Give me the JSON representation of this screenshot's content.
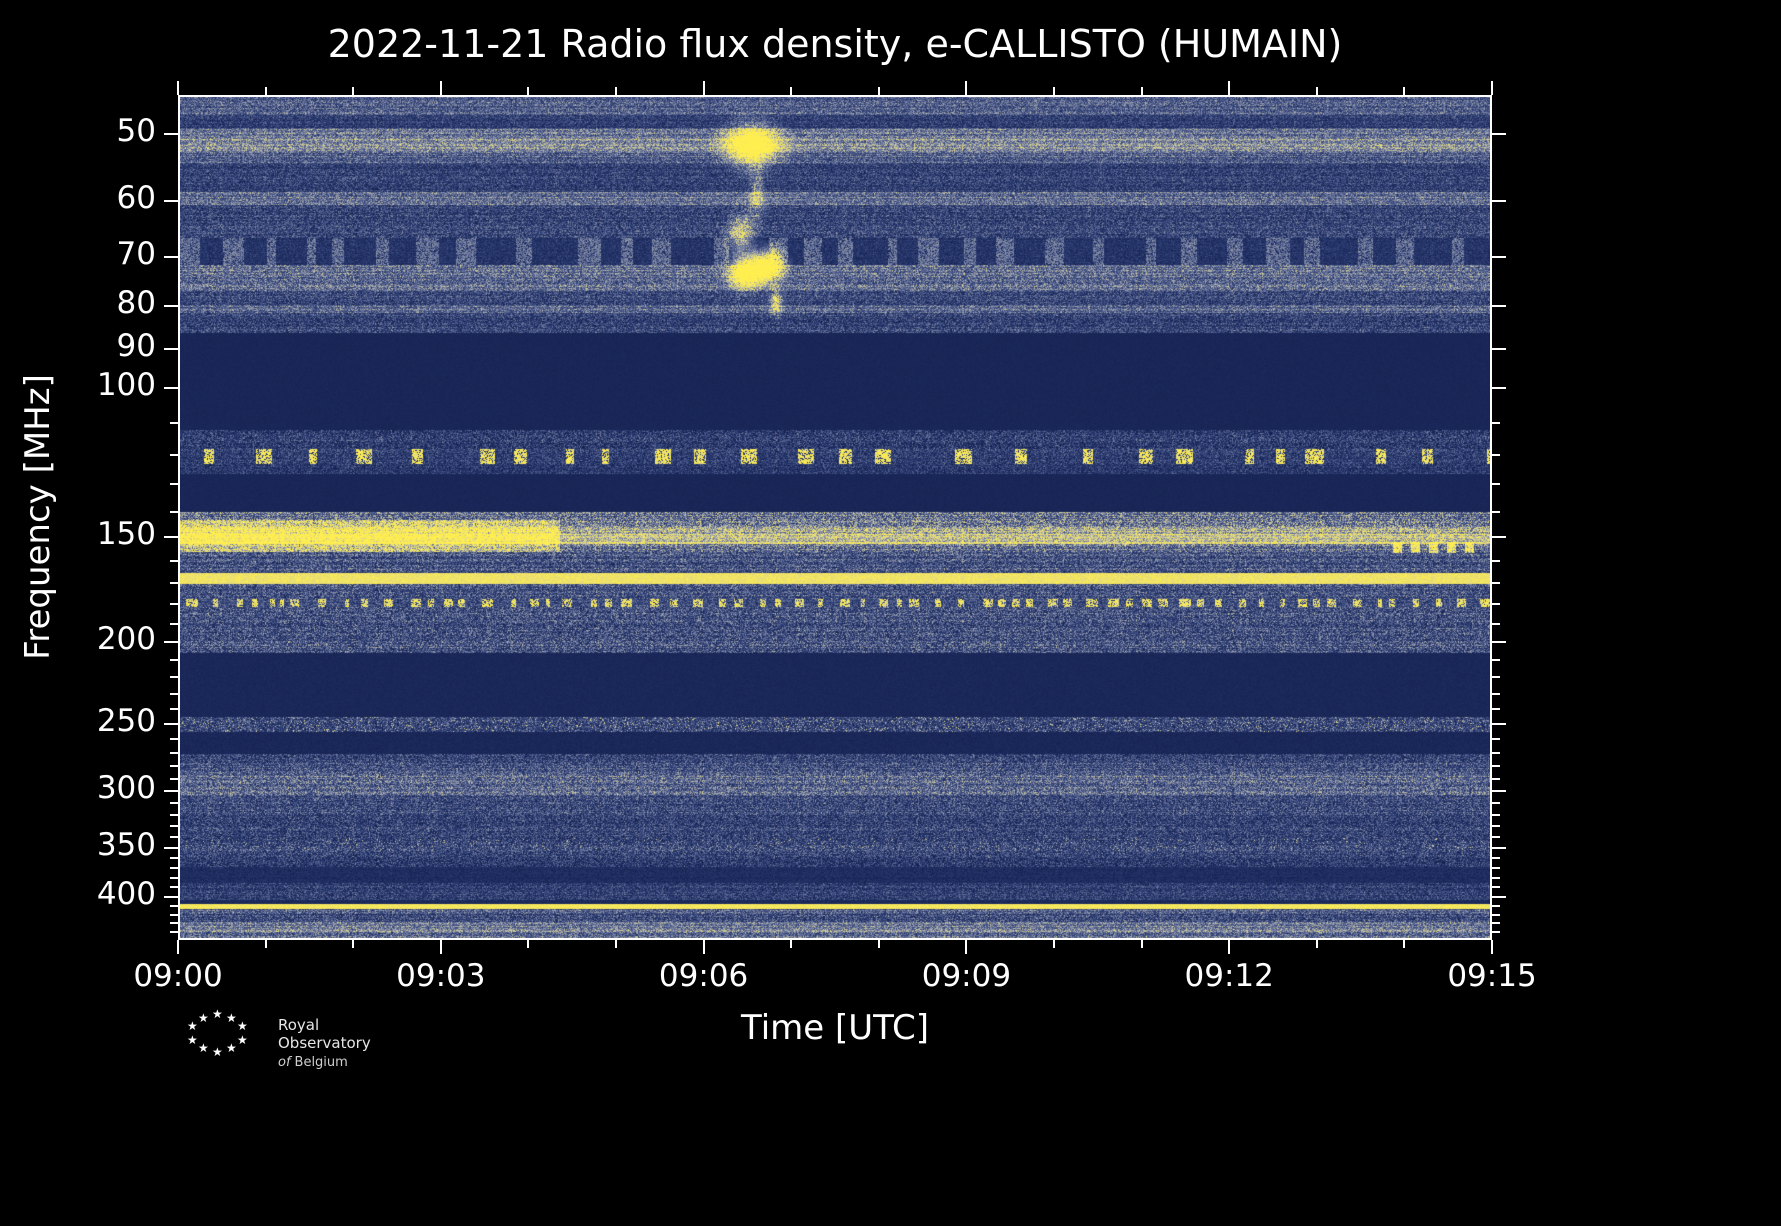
{
  "page": {
    "background": "#000000",
    "text_color": "#ffffff"
  },
  "title": "2022-11-21 Radio flux density, e-CALLISTO (HUMAIN)",
  "logo": {
    "name": "Royal Observatory of Belgium",
    "line1": "Royal Observatory",
    "line2_italic": "of",
    "line2": "Belgium",
    "star_glyph": "★"
  },
  "chart_data": {
    "type": "heatmap",
    "subtype": "radio-spectrogram",
    "title": "2022-11-21 Radio flux density, e-CALLISTO (HUMAIN)",
    "xlabel": "Time [UTC]",
    "ylabel": "Frequency [MHz]",
    "x_start": "09:00",
    "x_end": "09:15",
    "x_range_minutes": [
      0,
      15
    ],
    "x_major_ticks": [
      {
        "minute": 0,
        "label": "09:00"
      },
      {
        "minute": 3,
        "label": "09:03"
      },
      {
        "minute": 6,
        "label": "09:06"
      },
      {
        "minute": 9,
        "label": "09:09"
      },
      {
        "minute": 12,
        "label": "09:12"
      },
      {
        "minute": 15,
        "label": "09:15"
      }
    ],
    "x_minor_tick_minutes": [
      1,
      2,
      4,
      5,
      7,
      8,
      10,
      11,
      13,
      14
    ],
    "y_scale": "log",
    "y_axis_inverted": true,
    "y_range_mhz": [
      45,
      450
    ],
    "y_major_ticks": [
      50,
      60,
      70,
      80,
      90,
      100,
      150,
      200,
      250,
      300,
      350,
      400
    ],
    "y_minor_ticks": [
      110,
      120,
      130,
      140,
      160,
      170,
      180,
      190,
      210,
      220,
      230,
      240,
      260,
      270,
      280,
      290,
      310,
      320,
      330,
      340,
      360,
      370,
      380,
      390,
      410,
      420,
      430,
      440
    ],
    "grid": false,
    "colormap": [
      {
        "v": 0.0,
        "c": "#131f4e"
      },
      {
        "v": 0.28,
        "c": "#2c3c72"
      },
      {
        "v": 0.52,
        "c": "#66729a"
      },
      {
        "v": 0.68,
        "c": "#a5a9ab"
      },
      {
        "v": 0.8,
        "c": "#d9d28c"
      },
      {
        "v": 1.0,
        "c": "#ffee4f"
      }
    ],
    "bands": [
      {
        "f0": 45,
        "f1": 47.5,
        "mode": "noise",
        "base": 0.42,
        "amp": 0.22
      },
      {
        "f0": 47.5,
        "f1": 49.2,
        "mode": "noise",
        "base": 0.26,
        "amp": 0.2
      },
      {
        "f0": 49.2,
        "f1": 50.4,
        "mode": "noise",
        "base": 0.5,
        "amp": 0.22
      },
      {
        "f0": 50.4,
        "f1": 52.6,
        "mode": "noise",
        "base": 0.6,
        "amp": 0.22
      },
      {
        "f0": 52.6,
        "f1": 54.2,
        "mode": "noise",
        "base": 0.46,
        "amp": 0.22
      },
      {
        "f0": 54.2,
        "f1": 58.6,
        "mode": "noise",
        "base": 0.28,
        "amp": 0.22
      },
      {
        "f0": 58.6,
        "f1": 60.8,
        "mode": "noise",
        "base": 0.48,
        "amp": 0.22
      },
      {
        "f0": 60.8,
        "f1": 66.5,
        "mode": "noise",
        "base": 0.3,
        "amp": 0.24
      },
      {
        "f0": 66.5,
        "f1": 71.5,
        "mode": "dashes",
        "base": 0.2,
        "amp": 0.14,
        "dash_v": 0.52,
        "dash_gap": 30,
        "dash_len": 16
      },
      {
        "f0": 71.5,
        "f1": 76.8,
        "mode": "noise",
        "base": 0.48,
        "amp": 0.24
      },
      {
        "f0": 76.8,
        "f1": 79.8,
        "mode": "noise",
        "base": 0.33,
        "amp": 0.24
      },
      {
        "f0": 79.8,
        "f1": 81.6,
        "mode": "noise",
        "base": 0.48,
        "amp": 0.22
      },
      {
        "f0": 81.6,
        "f1": 86,
        "mode": "noise",
        "base": 0.3,
        "amp": 0.24
      },
      {
        "f0": 86,
        "f1": 112,
        "mode": "blank",
        "base": 0.07,
        "amp": 0.03
      },
      {
        "f0": 112,
        "f1": 118,
        "mode": "noise",
        "base": 0.25,
        "amp": 0.26
      },
      {
        "f0": 118,
        "f1": 123,
        "mode": "dashes",
        "base": 0.26,
        "amp": 0.22,
        "dash_v": 1.0,
        "dash_gap": 40,
        "dash_len": 13
      },
      {
        "f0": 123,
        "f1": 126.5,
        "mode": "noise",
        "base": 0.22,
        "amp": 0.22
      },
      {
        "f0": 126.5,
        "f1": 140,
        "mode": "blank",
        "base": 0.07,
        "amp": 0.03
      },
      {
        "f0": 140,
        "f1": 146,
        "mode": "noise",
        "base": 0.5,
        "amp": 0.3
      },
      {
        "f0": 146,
        "f1": 149,
        "mode": "noise",
        "base": 0.7,
        "amp": 0.26
      },
      {
        "f0": 149,
        "f1": 153,
        "mode": "noise",
        "base": 0.8,
        "amp": 0.22
      },
      {
        "f0": 153,
        "f1": 156.5,
        "mode": "noise",
        "base": 0.52,
        "amp": 0.28
      },
      {
        "f0": 156.5,
        "f1": 165.5,
        "mode": "noise",
        "base": 0.37,
        "amp": 0.26
      },
      {
        "f0": 165.5,
        "f1": 170.5,
        "mode": "line",
        "base": 0.92,
        "amp": 0.08
      },
      {
        "f0": 170.5,
        "f1": 177.5,
        "mode": "noise",
        "base": 0.36,
        "amp": 0.26
      },
      {
        "f0": 177.5,
        "f1": 181.5,
        "mode": "dashes",
        "base": 0.32,
        "amp": 0.2,
        "dash_v": 0.95,
        "dash_gap": 12,
        "dash_len": 8
      },
      {
        "f0": 181.5,
        "f1": 206,
        "mode": "noise",
        "base": 0.37,
        "amp": 0.28
      },
      {
        "f0": 206,
        "f1": 245,
        "mode": "blank",
        "base": 0.08,
        "amp": 0.04
      },
      {
        "f0": 245,
        "f1": 255,
        "mode": "speckle",
        "base": 0.3,
        "amp": 0.26,
        "sp_p": 0.07,
        "sp_v": 0.72
      },
      {
        "f0": 255,
        "f1": 271,
        "mode": "blank",
        "base": 0.08,
        "amp": 0.05
      },
      {
        "f0": 271,
        "f1": 278,
        "mode": "noise",
        "base": 0.3,
        "amp": 0.26
      },
      {
        "f0": 278,
        "f1": 287,
        "mode": "noise",
        "base": 0.38,
        "amp": 0.26
      },
      {
        "f0": 287,
        "f1": 303,
        "mode": "noise",
        "base": 0.46,
        "amp": 0.26
      },
      {
        "f0": 303,
        "f1": 320,
        "mode": "noise",
        "base": 0.33,
        "amp": 0.26
      },
      {
        "f0": 320,
        "f1": 341,
        "mode": "noise",
        "base": 0.29,
        "amp": 0.26
      },
      {
        "f0": 341,
        "f1": 353,
        "mode": "speckle",
        "base": 0.31,
        "amp": 0.26,
        "sp_p": 0.04,
        "sp_v": 0.7
      },
      {
        "f0": 353,
        "f1": 369,
        "mode": "noise",
        "base": 0.28,
        "amp": 0.26
      },
      {
        "f0": 369,
        "f1": 385,
        "mode": "noise",
        "base": 0.13,
        "amp": 0.1
      },
      {
        "f0": 385,
        "f1": 403,
        "mode": "noise",
        "base": 0.27,
        "amp": 0.22
      },
      {
        "f0": 403,
        "f1": 408,
        "mode": "blank",
        "base": 0.1,
        "amp": 0.05
      },
      {
        "f0": 408,
        "f1": 413,
        "mode": "line",
        "base": 0.95,
        "amp": 0.06
      },
      {
        "f0": 413,
        "f1": 419,
        "mode": "noise",
        "base": 0.42,
        "amp": 0.24
      },
      {
        "f0": 419,
        "f1": 428,
        "mode": "noise",
        "base": 0.32,
        "amp": 0.26
      },
      {
        "f0": 428,
        "f1": 440,
        "mode": "noise",
        "base": 0.55,
        "amp": 0.22
      },
      {
        "f0": 440,
        "f1": 450,
        "mode": "noise",
        "base": 0.48,
        "amp": 0.24
      }
    ],
    "events": [
      {
        "type": "rect",
        "t0": 0,
        "t1": 4.35,
        "f0": 143.5,
        "f1": 156,
        "add": 0.3,
        "label": "enhanced bright RFI band 144-156 MHz until ~09:04:20"
      },
      {
        "type": "rect",
        "t0": 13.85,
        "t1": 14.8,
        "f0": 152.5,
        "f1": 156.5,
        "add": 0.5,
        "dashed": true,
        "label": "bright dashes ~154 MHz near 09:14"
      },
      {
        "type": "blob",
        "t": 6.55,
        "f": 51.5,
        "dt": 0.2,
        "df": 2.0,
        "v": 0.85,
        "label": "burst blob ~51 MHz at 09:06:30"
      },
      {
        "type": "blob",
        "t": 6.6,
        "f": 59,
        "dt": 0.06,
        "df": 3.0,
        "v": 0.35,
        "label": "faint streak ~59 MHz"
      },
      {
        "type": "blob",
        "t": 6.42,
        "f": 66,
        "dt": 0.1,
        "df": 2.5,
        "v": 0.55,
        "label": "burst blob ~66 MHz"
      },
      {
        "type": "blob",
        "t": 6.47,
        "f": 73,
        "dt": 0.12,
        "df": 2.0,
        "v": 1.0,
        "label": "bright burst blob ~73 MHz"
      },
      {
        "type": "blob",
        "t": 6.72,
        "f": 71.5,
        "dt": 0.12,
        "df": 2.0,
        "v": 1.0,
        "label": "bright burst blob ~72 MHz"
      },
      {
        "type": "blob",
        "t": 6.82,
        "f": 79,
        "dt": 0.05,
        "df": 2.0,
        "v": 0.5,
        "label": "faint burst streak ~79 MHz"
      }
    ]
  }
}
